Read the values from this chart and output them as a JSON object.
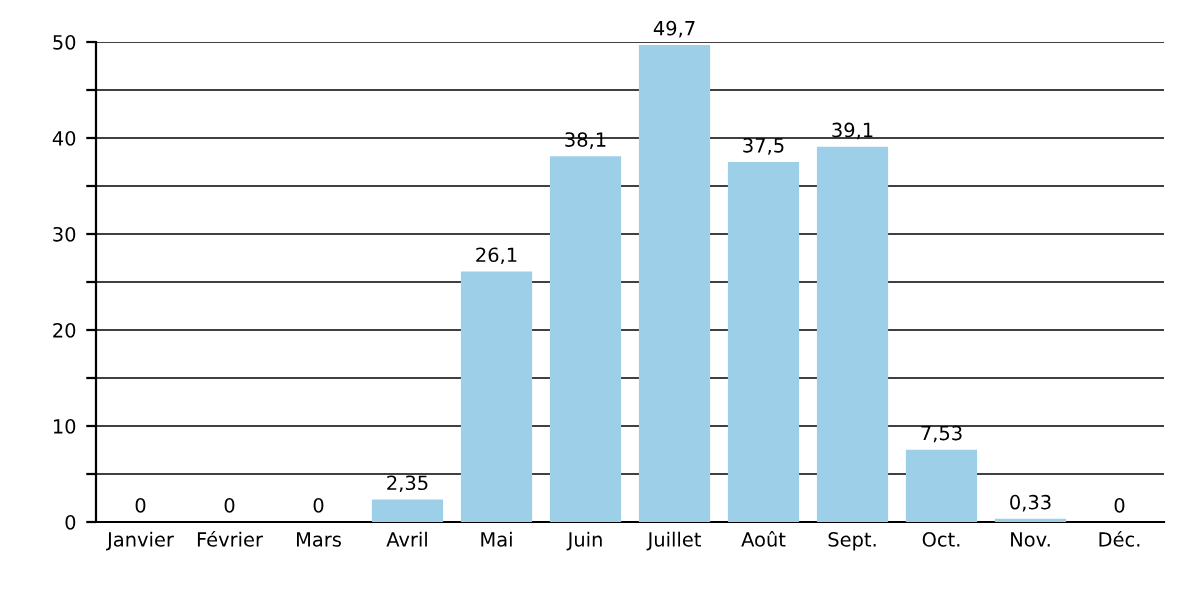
{
  "chart_data": {
    "type": "bar",
    "categories": [
      "Janvier",
      "Février",
      "Mars",
      "Avril",
      "Mai",
      "Juin",
      "Juillet",
      "Août",
      "Sept.",
      "Oct.",
      "Nov.",
      "Déc."
    ],
    "values": [
      0,
      0,
      0,
      2.35,
      26.1,
      38.1,
      49.7,
      37.5,
      39.1,
      7.53,
      0.33,
      0
    ],
    "value_labels": [
      "0",
      "0",
      "0",
      "2,35",
      "26,1",
      "38,1",
      "49,7",
      "37,5",
      "39,1",
      "7,53",
      "0,33",
      "0"
    ],
    "color": "#9dcfe8",
    "ylim": [
      0,
      50
    ],
    "yticks": [
      0,
      {
        "value": 5,
        "label": null
      },
      10,
      {
        "value": 15,
        "label": null
      },
      20,
      {
        "value": 25,
        "label": null
      },
      30,
      {
        "value": 35,
        "label": null
      },
      40,
      {
        "value": 45,
        "label": null
      },
      50
    ],
    "grid": "y"
  }
}
